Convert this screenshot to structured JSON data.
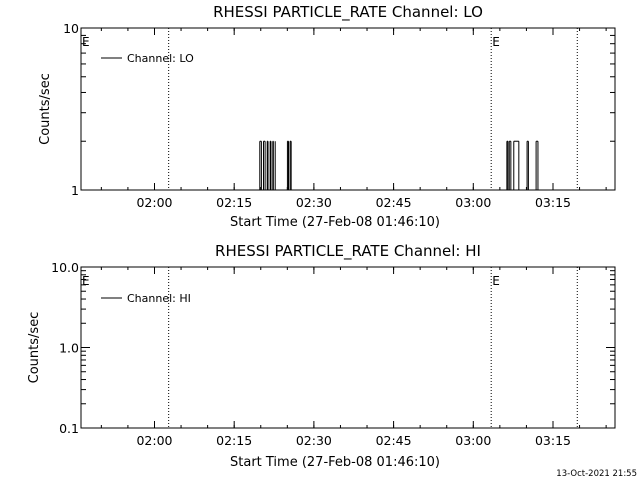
{
  "footer": {
    "timestamp": "13-Oct-2021 21:55"
  },
  "chart_data": [
    {
      "type": "line",
      "title": "RHESSI PARTICLE_RATE Channel: LO",
      "xlabel": "Start Time (27-Feb-08 01:46:10)",
      "ylabel": "Counts/sec",
      "yscale": "log",
      "xunit": "minutes since 27-Feb-08 01:46:10",
      "xlim": [
        0,
        100.5
      ],
      "ylim": [
        1,
        10
      ],
      "x_ticks": [
        {
          "x": 13.83,
          "label": "02:00"
        },
        {
          "x": 28.83,
          "label": "02:15"
        },
        {
          "x": 43.83,
          "label": "02:30"
        },
        {
          "x": 58.83,
          "label": "02:45"
        },
        {
          "x": 73.83,
          "label": "03:00"
        },
        {
          "x": 88.83,
          "label": "03:15"
        }
      ],
      "y_ticks": [
        {
          "y": 1,
          "label": "1"
        },
        {
          "y": 10,
          "label": "10"
        }
      ],
      "grid": false,
      "legend": {
        "position": "top-left",
        "entries": [
          "Channel: LO"
        ]
      },
      "event_lines": [
        {
          "x": 0,
          "label": "E"
        },
        {
          "x": 16.5,
          "label": ""
        },
        {
          "x": 77.2,
          "label": "E"
        },
        {
          "x": 93.4,
          "label": ""
        }
      ],
      "series": [
        {
          "name": "Channel: LO",
          "x": [
            33.6,
            33.65,
            33.95,
            34.0,
            34.3,
            34.35,
            34.65,
            34.7,
            35.0,
            35.05,
            35.2,
            35.25,
            35.55,
            35.6,
            35.75,
            35.8,
            36.05,
            36.1,
            36.2,
            36.25,
            36.5,
            36.55,
            38.8,
            38.85,
            39.05,
            39.1,
            39.3,
            39.35,
            39.55,
            39.6,
            80.1,
            80.15,
            80.35,
            80.4,
            80.55,
            80.6,
            80.9,
            80.95,
            81.4,
            81.45,
            82.4,
            82.45,
            83.9,
            83.95,
            84.2,
            84.25,
            85.6,
            85.65,
            86.0,
            86.05
          ],
          "y": [
            1,
            2,
            2,
            1,
            1,
            2,
            2,
            1,
            1,
            2,
            2,
            1,
            1,
            2,
            2,
            1,
            1,
            2,
            2,
            1,
            1,
            2,
            1,
            2,
            2,
            1,
            1,
            2,
            2,
            1,
            1,
            2,
            2,
            1,
            1,
            2,
            2,
            1,
            1,
            2,
            2,
            1,
            1,
            2,
            2,
            1,
            1,
            2,
            2,
            1
          ]
        }
      ]
    },
    {
      "type": "line",
      "title": "RHESSI PARTICLE_RATE Channel: HI",
      "xlabel": "Start Time (27-Feb-08 01:46:10)",
      "ylabel": "Counts/sec",
      "yscale": "log",
      "xunit": "minutes since 27-Feb-08 01:46:10",
      "xlim": [
        0,
        100.5
      ],
      "ylim": [
        0.1,
        10.0
      ],
      "x_ticks": [
        {
          "x": 13.83,
          "label": "02:00"
        },
        {
          "x": 28.83,
          "label": "02:15"
        },
        {
          "x": 43.83,
          "label": "02:30"
        },
        {
          "x": 58.83,
          "label": "02:45"
        },
        {
          "x": 73.83,
          "label": "03:00"
        },
        {
          "x": 88.83,
          "label": "03:15"
        }
      ],
      "y_ticks": [
        {
          "y": 0.1,
          "label": "0.1"
        },
        {
          "y": 1.0,
          "label": "1.0"
        },
        {
          "y": 10.0,
          "label": "10.0"
        }
      ],
      "grid": false,
      "legend": {
        "position": "top-left",
        "entries": [
          "Channel: HI"
        ]
      },
      "event_lines": [
        {
          "x": 0,
          "label": "E"
        },
        {
          "x": 16.5,
          "label": ""
        },
        {
          "x": 77.2,
          "label": "E"
        },
        {
          "x": 93.4,
          "label": ""
        }
      ],
      "series": [
        {
          "name": "Channel: HI",
          "x": [],
          "y": []
        }
      ]
    }
  ]
}
